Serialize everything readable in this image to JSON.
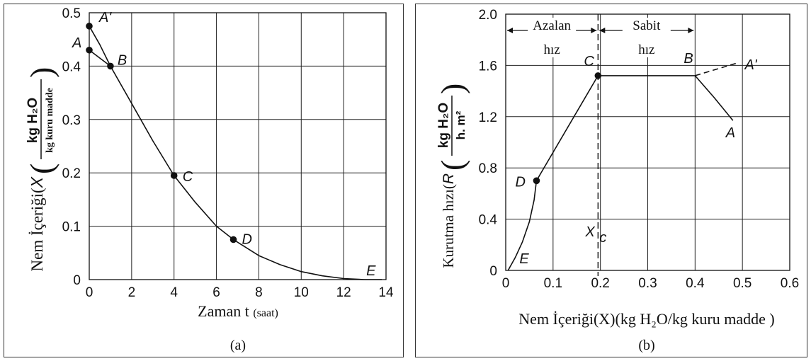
{
  "chart_data": [
    {
      "type": "line",
      "panel_label": "(a)",
      "xlabel_main": "Zaman t",
      "xlabel_unit": "(saat)",
      "ylabel_main": "Nem İçeriği(",
      "ylabel_var": "X",
      "ylabel_close": ")",
      "ylabel_frac_num": "kg H₂O",
      "ylabel_frac_den": "kg kuru madde",
      "xlim": [
        0,
        14
      ],
      "ylim": [
        0,
        0.5
      ],
      "xticks": [
        "0",
        "2",
        "4",
        "6",
        "8",
        "10",
        "12",
        "14"
      ],
      "yticks": [
        "0",
        "0.1",
        "0.2",
        "0.3",
        "0.4",
        "0.5"
      ],
      "grid": true,
      "series": [
        {
          "x": [
            0,
            0.5,
            1,
            2,
            3,
            4,
            5,
            6,
            6.8,
            8,
            9,
            10,
            11,
            12,
            13,
            13.8
          ],
          "y": [
            0.475,
            0.44,
            0.4,
            0.33,
            0.26,
            0.195,
            0.145,
            0.1,
            0.075,
            0.045,
            0.028,
            0.015,
            0.007,
            0.002,
            0,
            0
          ]
        },
        {
          "x": [
            0,
            1
          ],
          "y": [
            0.43,
            0.4
          ]
        }
      ],
      "points": [
        {
          "label": "A'",
          "x": 0,
          "y": 0.475,
          "marker": true
        },
        {
          "label": "A",
          "x": 0,
          "y": 0.43,
          "marker": true
        },
        {
          "label": "B",
          "x": 1,
          "y": 0.4,
          "marker": true
        },
        {
          "label": "C",
          "x": 4,
          "y": 0.195,
          "marker": true
        },
        {
          "label": "D",
          "x": 6.8,
          "y": 0.075,
          "marker": true
        },
        {
          "label": "E",
          "x": 12.9,
          "y": 0,
          "marker": false
        }
      ]
    },
    {
      "type": "line",
      "panel_label": "(b)",
      "xlabel": "Nem İçeriği(X)(kg H₂O/kg kuru madde )",
      "ylabel_main": "Kurutma hızı(",
      "ylabel_var": "R",
      "ylabel_close": ")",
      "ylabel_frac_num": "kg H₂O",
      "ylabel_frac_den": "h. m²",
      "xlim": [
        0,
        0.6
      ],
      "ylim": [
        0,
        2.0
      ],
      "xticks": [
        "0",
        "0.1",
        "0.2",
        "0.3",
        "0.4",
        "0.5",
        "0.6"
      ],
      "yticks": [
        "0",
        "0.4",
        "0.8",
        "1.2",
        "1.6",
        "2.0"
      ],
      "grid": true,
      "series": [
        {
          "x": [
            0.48,
            0.44,
            0.4,
            0.3,
            0.195,
            0.065,
            0.06,
            0.05,
            0.035,
            0.02,
            0.005
          ],
          "y": [
            1.17,
            1.35,
            1.52,
            1.52,
            1.52,
            0.7,
            0.55,
            0.38,
            0.22,
            0.1,
            0.0
          ]
        },
        {
          "x": [
            0.4,
            0.49
          ],
          "y": [
            1.52,
            1.62
          ],
          "dashed": true
        }
      ],
      "points": [
        {
          "label": "A'",
          "x": 0.49,
          "y": 1.62,
          "marker": false
        },
        {
          "label": "A",
          "x": 0.48,
          "y": 1.17,
          "marker": false
        },
        {
          "label": "B",
          "x": 0.4,
          "y": 1.52,
          "marker": false
        },
        {
          "label": "C",
          "x": 0.195,
          "y": 1.52,
          "marker": true
        },
        {
          "label": "D",
          "x": 0.065,
          "y": 0.7,
          "marker": true
        },
        {
          "label": "E",
          "x": 0.005,
          "y": 0.0,
          "marker": false
        }
      ],
      "critical_moisture": {
        "label": "X",
        "subscript": "c",
        "x": 0.195
      },
      "regions": [
        {
          "top": "Azalan",
          "bottom": "hız",
          "x_from": 0,
          "x_to": 0.195
        },
        {
          "top": "Sabit",
          "bottom": "hız",
          "x_from": 0.195,
          "x_to": 0.4
        }
      ]
    }
  ]
}
